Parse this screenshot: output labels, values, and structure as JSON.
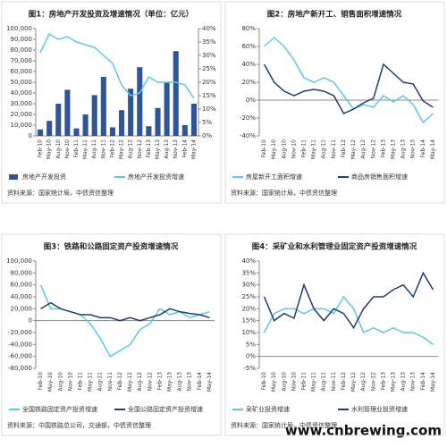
{
  "chart_data": [
    {
      "type": "combo",
      "title": "图1：房地产开发投资及增速情况（单位：亿元）",
      "categories": [
        "Feb-10",
        "May-10",
        "Aug-10",
        "Nov-10",
        "Feb-11",
        "May-11",
        "Aug-11",
        "Nov-11",
        "Feb-12",
        "May-12",
        "Aug-12",
        "Nov-12",
        "Feb-13",
        "May-13",
        "Aug-13",
        "Nov-13",
        "Feb-14",
        "May-14"
      ],
      "series": [
        {
          "name": "房地产开发投资",
          "type": "bar",
          "color": "#2f5597",
          "values": [
            6000,
            14000,
            30000,
            43000,
            7000,
            20000,
            38000,
            55000,
            8000,
            24000,
            44000,
            64000,
            9000,
            26000,
            50000,
            79000,
            10000,
            30000
          ]
        },
        {
          "name": "房地产开发投资增速",
          "type": "line",
          "axis": "y2",
          "color": "#5bc8e8",
          "values": [
            31,
            38,
            36,
            37,
            35,
            34,
            33,
            30,
            27,
            19,
            15,
            16,
            22,
            20,
            20,
            20,
            19,
            14
          ]
        }
      ],
      "ylim": [
        0,
        100000
      ],
      "yticks": [
        0,
        {
          "value": 10000,
          "label": "10,000"
        },
        {
          "value": 20000,
          "label": "20,000"
        },
        {
          "value": 30000,
          "label": "30,000"
        },
        {
          "value": 40000,
          "label": "40,000"
        },
        {
          "value": 50000,
          "label": "50,000"
        },
        {
          "value": 60000,
          "label": "60,000"
        },
        {
          "value": 70000,
          "label": "70,000"
        },
        {
          "value": 80000,
          "label": "80,000"
        },
        {
          "value": 90000,
          "label": "90,000"
        },
        {
          "value": 100000,
          "label": "100,000"
        }
      ],
      "y2lim": [
        0,
        40
      ],
      "y2ticks": [
        {
          "value": 0,
          "label": "0%"
        },
        {
          "value": 5,
          "label": "5%"
        },
        {
          "value": 10,
          "label": "10%"
        },
        {
          "value": 15,
          "label": "15%"
        },
        {
          "value": 20,
          "label": "20%"
        },
        {
          "value": 25,
          "label": "25%"
        },
        {
          "value": 30,
          "label": "30%"
        },
        {
          "value": 35,
          "label": "35%"
        },
        {
          "value": 40,
          "label": "40%"
        }
      ],
      "grid": false,
      "source": "资料来源：国家统计局，中债资信整理"
    },
    {
      "type": "line",
      "title": "图2：房地产新开工、销售面积增速情况",
      "categories": [
        "Feb-10",
        "May-10",
        "Aug-10",
        "Nov-10",
        "Feb-11",
        "May-11",
        "Aug-11",
        "Nov-11",
        "Feb-12",
        "May-12",
        "Aug-12",
        "Nov-12",
        "Feb-13",
        "May-13",
        "Aug-13",
        "Nov-13",
        "Feb-14",
        "May-14"
      ],
      "series": [
        {
          "name": "房屋新开工面积增速",
          "color": "#5bc8e8",
          "values": [
            60,
            70,
            60,
            45,
            25,
            20,
            25,
            20,
            5,
            -10,
            -5,
            -8,
            5,
            -2,
            5,
            -5,
            -25,
            -15
          ]
        },
        {
          "name": "商品房销售面积增速",
          "color": "#1f3e6e",
          "values": [
            40,
            20,
            10,
            5,
            10,
            12,
            10,
            5,
            -15,
            -10,
            -3,
            2,
            40,
            30,
            20,
            18,
            -1,
            -8
          ]
        }
      ],
      "ylim": [
        -40,
        80
      ],
      "yticks": [
        {
          "value": -40,
          "label": "-40%"
        },
        {
          "value": -20,
          "label": "-20%"
        },
        {
          "value": 0,
          "label": "0%"
        },
        {
          "value": 20,
          "label": "20%"
        },
        {
          "value": 40,
          "label": "40%"
        },
        {
          "value": 60,
          "label": "60%"
        },
        {
          "value": 80,
          "label": "80%"
        }
      ],
      "grid": false,
      "source": "资料来源：国家统计局，中债资信整理"
    },
    {
      "type": "line",
      "title": "图3：铁路和公路固定资产投资增速情况",
      "categories": [
        "Feb-10",
        "May-10",
        "Aug-10",
        "Nov-10",
        "Feb-11",
        "May-11",
        "Aug-11",
        "Nov-11",
        "Feb-12",
        "May-12",
        "Aug-12",
        "Nov-12",
        "Feb-13",
        "May-13",
        "Aug-13",
        "Nov-13",
        "Feb-14",
        "May-14"
      ],
      "series": [
        {
          "name": "全国铁路固定资产投资增速",
          "color": "#5bc8e8",
          "values": [
            60000,
            20000,
            20000,
            15000,
            10000,
            -5000,
            -30000,
            -60000,
            -50000,
            -40000,
            -15000,
            -5000,
            20000,
            10000,
            15000,
            5000,
            10000,
            15000
          ]
        },
        {
          "name": "全国公路固定资产投资增速",
          "color": "#1f3e6e",
          "values": [
            20000,
            30000,
            20000,
            15000,
            10000,
            10000,
            5000,
            5000,
            0,
            5000,
            0,
            5000,
            10000,
            20000,
            15000,
            12000,
            10000,
            5000
          ]
        }
      ],
      "ylim": [
        -80000,
        100000
      ],
      "yticks": [
        {
          "value": -80000,
          "label": "-80,000"
        },
        {
          "value": -60000,
          "label": "-60,000"
        },
        {
          "value": -40000,
          "label": "-40,000"
        },
        {
          "value": -20000,
          "label": "-20,000"
        },
        0,
        {
          "value": 20000,
          "label": "20,000"
        },
        {
          "value": 40000,
          "label": "40,000"
        },
        {
          "value": 60000,
          "label": "60,000"
        },
        {
          "value": 80000,
          "label": "80,000"
        },
        {
          "value": 100000,
          "label": "100,000"
        }
      ],
      "grid": false,
      "source": "资料来源：中国铁路总公司，交通部，中债资信整理"
    },
    {
      "type": "line",
      "title": "图4：采矿业和水利管理业固定资产投资增速情况",
      "categories": [
        "Feb-10",
        "May-10",
        "Aug-10",
        "Nov-10",
        "Feb-11",
        "May-11",
        "Aug-11",
        "Nov-11",
        "Feb-12",
        "May-12",
        "Aug-12",
        "Nov-12",
        "Feb-13",
        "May-13",
        "Aug-13",
        "Nov-13",
        "Feb-14",
        "May-14"
      ],
      "series": [
        {
          "name": "采矿业投资增速",
          "color": "#5bc8e8",
          "values": [
            10,
            18,
            20,
            20,
            18,
            20,
            20,
            18,
            25,
            20,
            10,
            12,
            10,
            12,
            10,
            10,
            8,
            5
          ]
        },
        {
          "name": "水利管理业投资增速",
          "color": "#1f3e6e",
          "values": [
            25,
            15,
            18,
            16,
            30,
            20,
            15,
            20,
            18,
            12,
            20,
            25,
            25,
            28,
            30,
            25,
            35,
            28
          ]
        }
      ],
      "ylim": [
        -5,
        40
      ],
      "yticks": [
        {
          "value": -5,
          "label": "-5%"
        },
        {
          "value": 0,
          "label": "0%"
        },
        {
          "value": 5,
          "label": "5%"
        },
        {
          "value": 10,
          "label": "10%"
        },
        {
          "value": 15,
          "label": "15%"
        },
        {
          "value": 20,
          "label": "20%"
        },
        {
          "value": 25,
          "label": "25%"
        },
        {
          "value": 30,
          "label": "30%"
        },
        {
          "value": 35,
          "label": "35%"
        },
        {
          "value": 40,
          "label": "40%"
        }
      ],
      "grid": false,
      "source": "资料来源：国家统计局，中债资信整理"
    }
  ],
  "watermark": "www.cnbrewing.com"
}
